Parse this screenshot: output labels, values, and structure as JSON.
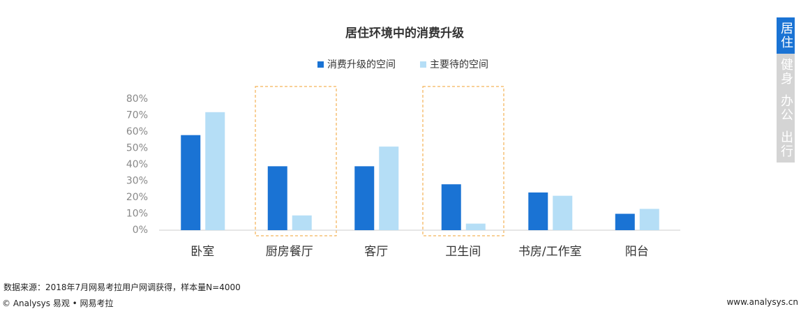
{
  "chart_data": {
    "type": "bar",
    "title": "居住环境中的消费升级",
    "categories": [
      "卧室",
      "厨房餐厅",
      "客厅",
      "卫生间",
      "书房/工作室",
      "阳台"
    ],
    "series": [
      {
        "name": "消费升级的空间",
        "color": "#1a73d4",
        "values": [
          58,
          39,
          39,
          28,
          23,
          10
        ]
      },
      {
        "name": "主要待的空间",
        "color": "#b5def6",
        "values": [
          72,
          9,
          51,
          4,
          21,
          13
        ]
      }
    ],
    "ylim": [
      0,
      80
    ],
    "yticks": [
      {
        "value": 0,
        "label": "0%"
      },
      {
        "value": 10,
        "label": "10%"
      },
      {
        "value": 20,
        "label": "20%"
      },
      {
        "value": 30,
        "label": "30%"
      },
      {
        "value": 40,
        "label": "40%"
      },
      {
        "value": 50,
        "label": "50%"
      },
      {
        "value": 60,
        "label": "60%"
      },
      {
        "value": 70,
        "label": "70%"
      },
      {
        "value": 80,
        "label": "80%"
      }
    ]
  },
  "tabs": [
    "居住",
    "健身",
    "办公",
    "出行"
  ],
  "footer": {
    "source": "数据来源：2018年7月网易考拉用户网调获得，样本量N=4000",
    "copyright": "© Analysys 易观 • 网易考拉",
    "website": "www.analysys.cn"
  }
}
